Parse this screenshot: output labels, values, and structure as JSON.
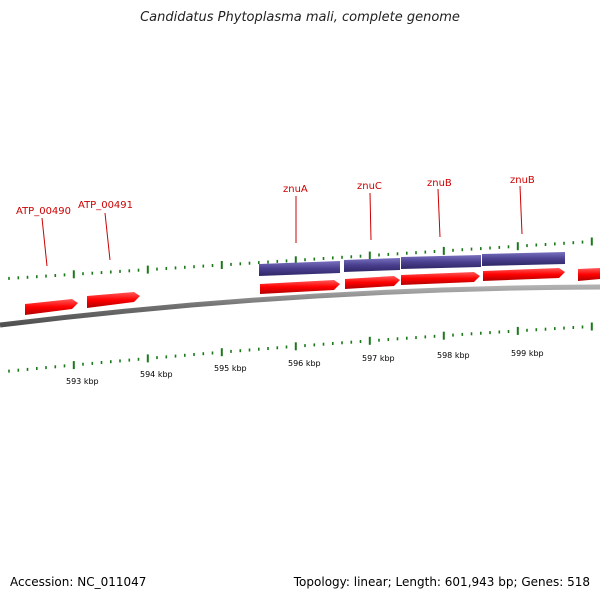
{
  "title": "Candidatus Phytoplasma mali, complete genome",
  "footer": {
    "accession": "Accession: NC_011047",
    "summary": "Topology: linear; Length: 601,943 bp; Genes: 518"
  },
  "colors": {
    "gene_fill": "#ff0000",
    "cds_fill": "#4a3f8f",
    "tick": "#1a7a1a",
    "backbone": "#808080",
    "label": "#cc0000"
  },
  "gene_labels": [
    "ATP_00490",
    "ATP_00491",
    "znuA",
    "znuC",
    "znuB",
    "znuB"
  ],
  "scale_labels": [
    "593 kbp",
    "594 kbp",
    "595 kbp",
    "596 kbp",
    "597 kbp",
    "598 kbp",
    "599 kbp"
  ]
}
